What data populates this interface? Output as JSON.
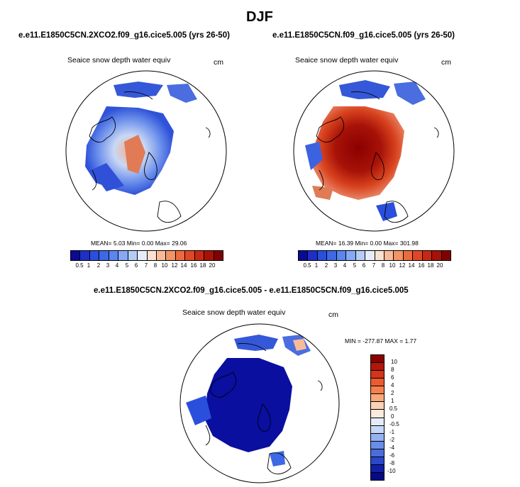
{
  "title": "DJF",
  "panels": [
    {
      "case_label": "e.e11.E1850C5CN.2XCO2.f09_g16.cice5.005 (yrs 26-50)",
      "variable": "Seaice snow depth water equiv",
      "units": "cm",
      "stats": "MEAN=   5.03  Min=   0.00  Max=  29.06"
    },
    {
      "case_label": "e.e11.E1850C5CN.f09_g16.cice5.005 (yrs 26-50)",
      "variable": "Seaice snow depth water equiv",
      "units": "cm",
      "stats": "MEAN=  16.39  Min=   0.00  Max= 301.98"
    }
  ],
  "diff_panel": {
    "case_label": "e.e11.E1850C5CN.2XCO2.f09_g16.cice5.005 - e.e11.E1850C5CN.f09_g16.cice5.005",
    "variable": "Seaice snow depth water equiv",
    "units": "cm",
    "stats": "MIN = -277.87 MAX =   1.77"
  },
  "colorbar_main": {
    "labels": [
      "0.5",
      "1",
      "2",
      "3",
      "4",
      "5",
      "6",
      "7",
      "8",
      "10",
      "12",
      "14",
      "16",
      "18",
      "20"
    ],
    "colors": [
      "#0a0a96",
      "#1e2fc8",
      "#2a4fdc",
      "#3d68e6",
      "#5a86f0",
      "#86a8f5",
      "#b4cdf8",
      "#e6ecfa",
      "#fbe1cf",
      "#f8bb98",
      "#f39366",
      "#ec6a3e",
      "#e04726",
      "#c82813",
      "#a71208",
      "#830000"
    ]
  },
  "colorbar_diff": {
    "labels": [
      "10",
      "8",
      "6",
      "4",
      "2",
      "1",
      "0.5",
      "0",
      "-0.5",
      "-1",
      "-2",
      "-4",
      "-6",
      "-8",
      "-10"
    ],
    "colors": [
      "#8b0000",
      "#b3170a",
      "#d3341a",
      "#ec5a30",
      "#f5804c",
      "#f8a97a",
      "#fbd2b5",
      "#fbebdf",
      "#e4ecfb",
      "#c6d8f8",
      "#94b2f1",
      "#6a8ee8",
      "#4a6ddc",
      "#2a48c8",
      "#1020a8",
      "#050a86"
    ]
  }
}
